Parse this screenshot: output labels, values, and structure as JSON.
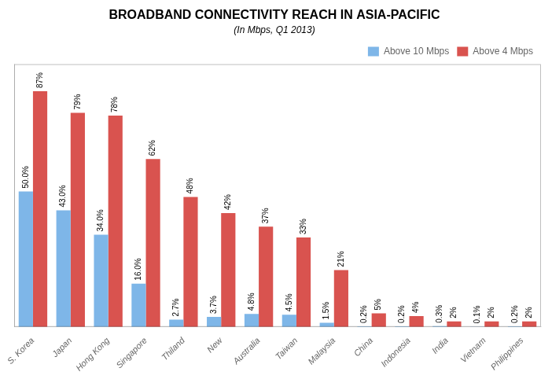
{
  "chart_data": {
    "type": "bar",
    "title": "BROADBAND CONNECTIVITY REACH IN ASIA-PACIFIC",
    "subtitle": "(In Mbps, Q1 2013)",
    "categories": [
      "S. Korea",
      "Japan",
      "Hong Kong",
      "Singapore",
      "Thiland",
      "New",
      "Australia",
      "Taiwan",
      "Malaysia",
      "China",
      "Indonesia",
      "India",
      "Vietnam",
      "Philippines"
    ],
    "series": [
      {
        "name": "Above 10 Mbps",
        "color": "#7EB6E8",
        "values": [
          50.0,
          43.0,
          34.0,
          16.0,
          2.7,
          3.7,
          4.8,
          4.5,
          1.5,
          0.2,
          0.2,
          0.3,
          0.1,
          0.2
        ],
        "value_labels": [
          "50.0%",
          "43.0%",
          "34.0%",
          "16.0%",
          "2.7%",
          "3.7%",
          "4.8%",
          "4.5%",
          "1.5%",
          "0.2%",
          "0.2%",
          "0.3%",
          "0.1%",
          "0.2%"
        ]
      },
      {
        "name": "Above 4 Mbps",
        "color": "#D9534F",
        "values": [
          87,
          79,
          78,
          62,
          48,
          42,
          37,
          33,
          21,
          5,
          4,
          2,
          2,
          2
        ],
        "value_labels": [
          "87%",
          "79%",
          "78%",
          "62%",
          "48%",
          "42%",
          "37%",
          "33%",
          "21%",
          "5%",
          "4%",
          "2%",
          "2%",
          "2%"
        ]
      }
    ],
    "ylim": [
      0,
      97
    ],
    "grid": false,
    "legend": "upper right",
    "data_labels": true,
    "tick_labels": "x"
  }
}
